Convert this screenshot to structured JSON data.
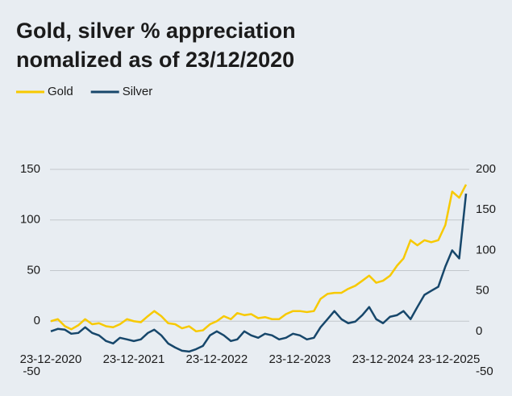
{
  "chart_data": {
    "type": "line",
    "title": "Gold, silver % appreciation nomalized as of 23/12/2020",
    "x": [
      "23-12-2020",
      "23-01-2021",
      "23-02-2021",
      "23-03-2021",
      "23-04-2021",
      "23-05-2021",
      "23-06-2021",
      "23-07-2021",
      "23-08-2021",
      "23-09-2021",
      "23-10-2021",
      "23-11-2021",
      "23-12-2021",
      "23-01-2022",
      "23-02-2022",
      "23-03-2022",
      "23-04-2022",
      "23-05-2022",
      "23-06-2022",
      "23-07-2022",
      "23-08-2022",
      "23-09-2022",
      "23-10-2022",
      "23-11-2022",
      "23-12-2022",
      "23-01-2023",
      "23-02-2023",
      "23-03-2023",
      "23-04-2023",
      "23-05-2023",
      "23-06-2023",
      "23-07-2023",
      "23-08-2023",
      "23-09-2023",
      "23-10-2023",
      "23-11-2023",
      "23-12-2023",
      "23-01-2024",
      "23-02-2024",
      "23-03-2024",
      "23-04-2024",
      "23-05-2024",
      "23-06-2024",
      "23-07-2024",
      "23-08-2024",
      "23-09-2024",
      "23-10-2024",
      "23-11-2024",
      "23-12-2024",
      "23-01-2025",
      "23-02-2025",
      "23-03-2025",
      "23-04-2025",
      "23-05-2025",
      "23-06-2025",
      "23-07-2025",
      "23-08-2025",
      "23-09-2025",
      "23-10-2025",
      "23-11-2025",
      "23-12-2025"
    ],
    "series": [
      {
        "name": "Gold",
        "color": "#f7c900",
        "axis": "y",
        "values": [
          0,
          2,
          -5,
          -8,
          -4,
          2,
          -3,
          -2,
          -5,
          -6,
          -3,
          2,
          0,
          -1,
          5,
          10,
          5,
          -2,
          -3,
          -7,
          -5,
          -10,
          -9,
          -3,
          0,
          5,
          2,
          8,
          6,
          7,
          3,
          4,
          2,
          2,
          7,
          10,
          10,
          9,
          10,
          22,
          27,
          28,
          28,
          32,
          35,
          40,
          45,
          38,
          40,
          45,
          55,
          62,
          80,
          75,
          80,
          78,
          80,
          95,
          128,
          122,
          135
        ]
      },
      {
        "name": "Silver",
        "color": "#17476b",
        "axis": "y2",
        "values": [
          0,
          3,
          2,
          -3,
          -2,
          5,
          -2,
          -5,
          -12,
          -15,
          -8,
          -10,
          -12,
          -10,
          -2,
          2,
          -5,
          -15,
          -20,
          -24,
          -25,
          -22,
          -18,
          -5,
          0,
          -5,
          -12,
          -10,
          0,
          -5,
          -8,
          -3,
          -5,
          -10,
          -8,
          -3,
          -5,
          -10,
          -8,
          5,
          15,
          25,
          15,
          10,
          12,
          20,
          30,
          15,
          10,
          18,
          20,
          25,
          15,
          30,
          45,
          50,
          55,
          80,
          100,
          90,
          170
        ]
      }
    ],
    "xticks": [
      "23-12-2020",
      "23-12-2021",
      "23-12-2022",
      "23-12-2023",
      "23-12-2024",
      "23-12-2025"
    ],
    "ylim": [
      -50,
      150
    ],
    "yticks": [
      -50,
      0,
      50,
      100,
      150
    ],
    "y2lim": [
      -50,
      200
    ],
    "y2ticks": [
      -50,
      0,
      50,
      100,
      150,
      200
    ],
    "grid": true
  }
}
